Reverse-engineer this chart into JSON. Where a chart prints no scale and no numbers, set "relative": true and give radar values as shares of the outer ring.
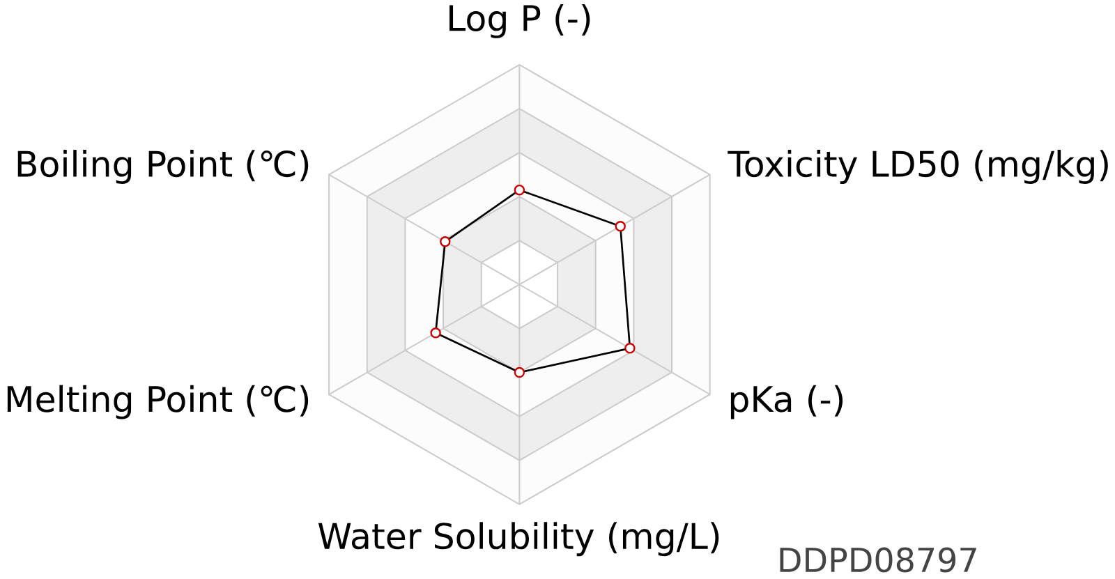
{
  "chart_data": {
    "type": "radar",
    "relative": true,
    "categories": [
      "Log P (-)",
      "Toxicity LD50 (mg/kg)",
      "pKa (-)",
      "Water Solubility (mg/L)",
      "Melting Point (℃)",
      "Boiling Point (℃)"
    ],
    "series": [
      {
        "color": "#000000",
        "values": [
          0.43,
          0.53,
          0.58,
          0.4,
          0.44,
          0.39
        ]
      }
    ],
    "marker": "circle",
    "grid": true,
    "annotations": [
      "DDPD08797"
    ]
  }
}
